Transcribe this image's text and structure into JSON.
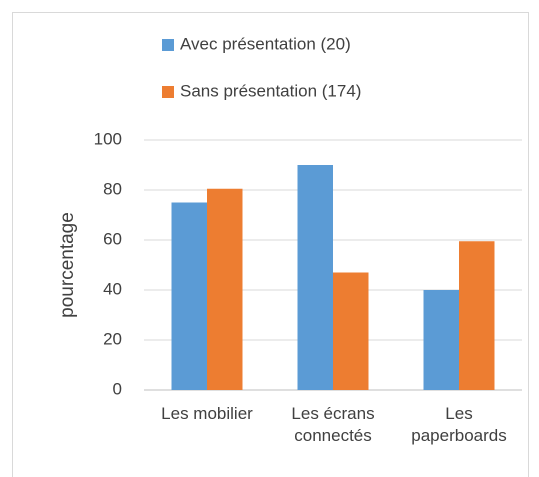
{
  "chart_data": {
    "type": "bar",
    "y_label": "pourcentage",
    "categories": [
      "Les mobilier",
      "Les écrans connectés",
      "Les paperboards"
    ],
    "series": [
      {
        "name": "Avec présentation (20)",
        "color": "#5b9bd5",
        "values": [
          75,
          90,
          40
        ]
      },
      {
        "name": "Sans présentation (174)",
        "color": "#ed7d31",
        "values": [
          80.5,
          47,
          59.5
        ]
      }
    ],
    "ylim": [
      0,
      100
    ],
    "yticks": [
      0,
      20,
      40,
      60,
      80,
      100
    ],
    "grid": true
  }
}
